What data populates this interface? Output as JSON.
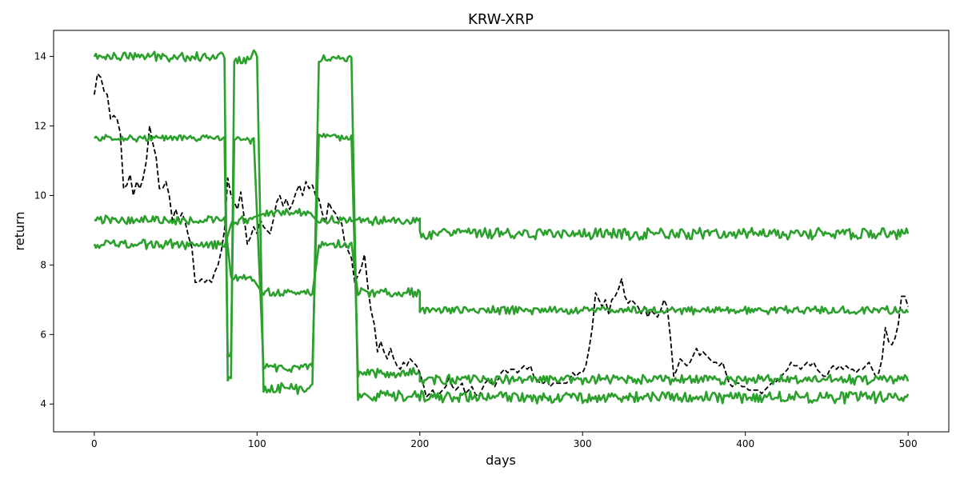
{
  "chart_data": {
    "type": "line",
    "title": "KRW-XRP",
    "xlabel": "days",
    "ylabel": "return",
    "xlim": [
      -25,
      525
    ],
    "ylim": [
      3.2,
      14.75
    ],
    "xticks": [
      0,
      100,
      200,
      300,
      400,
      500
    ],
    "yticks": [
      4,
      6,
      8,
      10,
      12,
      14
    ],
    "grid": false,
    "legend": "none",
    "colors": {
      "band": "#2ca02c",
      "actual": "#000000"
    },
    "series": [
      {
        "style": "dashed",
        "color": "#000000",
        "points": [
          [
            0,
            12.9
          ],
          [
            2,
            13.5
          ],
          [
            4,
            13.4
          ],
          [
            6,
            13.0
          ],
          [
            8,
            12.9
          ],
          [
            10,
            12.2
          ],
          [
            12,
            12.3
          ],
          [
            14,
            12.2
          ],
          [
            16,
            11.8
          ],
          [
            18,
            10.2
          ],
          [
            20,
            10.3
          ],
          [
            22,
            10.6
          ],
          [
            24,
            10.0
          ],
          [
            26,
            10.4
          ],
          [
            28,
            10.2
          ],
          [
            30,
            10.5
          ],
          [
            32,
            11.0
          ],
          [
            34,
            12.0
          ],
          [
            36,
            11.5
          ],
          [
            38,
            11.1
          ],
          [
            40,
            10.2
          ],
          [
            42,
            10.2
          ],
          [
            44,
            10.4
          ],
          [
            46,
            10.0
          ],
          [
            48,
            9.3
          ],
          [
            50,
            9.6
          ],
          [
            52,
            9.3
          ],
          [
            54,
            9.5
          ],
          [
            56,
            9.2
          ],
          [
            58,
            8.8
          ],
          [
            60,
            8.5
          ],
          [
            62,
            7.5
          ],
          [
            64,
            7.5
          ],
          [
            66,
            7.6
          ],
          [
            68,
            7.5
          ],
          [
            70,
            7.6
          ],
          [
            72,
            7.5
          ],
          [
            74,
            7.8
          ],
          [
            76,
            8.0
          ],
          [
            78,
            8.4
          ],
          [
            80,
            9.0
          ],
          [
            82,
            10.5
          ],
          [
            84,
            10.0
          ],
          [
            86,
            9.8
          ],
          [
            88,
            9.6
          ],
          [
            90,
            10.1
          ],
          [
            92,
            9.4
          ],
          [
            94,
            8.6
          ],
          [
            96,
            8.8
          ],
          [
            98,
            9.1
          ],
          [
            100,
            8.9
          ],
          [
            102,
            9.3
          ],
          [
            104,
            9.1
          ],
          [
            106,
            9.0
          ],
          [
            108,
            8.9
          ],
          [
            110,
            9.3
          ],
          [
            112,
            9.8
          ],
          [
            114,
            10.0
          ],
          [
            116,
            9.7
          ],
          [
            118,
            9.9
          ],
          [
            120,
            9.6
          ],
          [
            122,
            9.8
          ],
          [
            124,
            10.1
          ],
          [
            126,
            10.3
          ],
          [
            128,
            10.0
          ],
          [
            130,
            10.4
          ],
          [
            132,
            10.2
          ],
          [
            134,
            10.3
          ],
          [
            136,
            10.0
          ],
          [
            138,
            9.9
          ],
          [
            140,
            9.5
          ],
          [
            142,
            9.2
          ],
          [
            144,
            9.8
          ],
          [
            146,
            9.6
          ],
          [
            148,
            9.5
          ],
          [
            150,
            9.3
          ],
          [
            152,
            9.2
          ],
          [
            154,
            8.6
          ],
          [
            156,
            8.4
          ],
          [
            158,
            8.2
          ],
          [
            160,
            7.5
          ],
          [
            162,
            7.7
          ],
          [
            164,
            7.9
          ],
          [
            166,
            8.3
          ],
          [
            168,
            7.4
          ],
          [
            170,
            6.7
          ],
          [
            172,
            6.3
          ],
          [
            174,
            5.5
          ],
          [
            176,
            5.8
          ],
          [
            178,
            5.5
          ],
          [
            180,
            5.3
          ],
          [
            182,
            5.6
          ],
          [
            184,
            5.3
          ],
          [
            186,
            5.1
          ],
          [
            188,
            5.0
          ],
          [
            190,
            5.2
          ],
          [
            192,
            5.1
          ],
          [
            194,
            5.3
          ],
          [
            196,
            5.2
          ],
          [
            198,
            5.1
          ],
          [
            200,
            4.9
          ],
          [
            202,
            4.6
          ],
          [
            204,
            4.2
          ],
          [
            206,
            4.3
          ],
          [
            208,
            4.4
          ],
          [
            210,
            4.2
          ],
          [
            212,
            4.3
          ],
          [
            214,
            4.4
          ],
          [
            216,
            4.5
          ],
          [
            218,
            4.8
          ],
          [
            220,
            4.5
          ],
          [
            222,
            4.4
          ],
          [
            224,
            4.5
          ],
          [
            226,
            4.6
          ],
          [
            228,
            4.3
          ],
          [
            230,
            4.4
          ],
          [
            232,
            4.5
          ],
          [
            234,
            4.3
          ],
          [
            236,
            4.2
          ],
          [
            238,
            4.4
          ],
          [
            240,
            4.6
          ],
          [
            242,
            4.7
          ],
          [
            244,
            4.6
          ],
          [
            246,
            4.5
          ],
          [
            248,
            4.7
          ],
          [
            250,
            4.9
          ],
          [
            252,
            5.0
          ],
          [
            254,
            4.9
          ],
          [
            256,
            5.0
          ],
          [
            258,
            5.0
          ],
          [
            260,
            4.9
          ],
          [
            262,
            5.0
          ],
          [
            264,
            5.1
          ],
          [
            266,
            5.0
          ],
          [
            268,
            5.1
          ],
          [
            270,
            4.8
          ],
          [
            272,
            4.7
          ],
          [
            274,
            4.6
          ],
          [
            276,
            4.6
          ],
          [
            278,
            4.7
          ],
          [
            280,
            4.5
          ],
          [
            282,
            4.6
          ],
          [
            284,
            4.6
          ],
          [
            286,
            4.6
          ],
          [
            288,
            4.6
          ],
          [
            290,
            4.6
          ],
          [
            292,
            4.7
          ],
          [
            294,
            4.9
          ],
          [
            296,
            4.8
          ],
          [
            298,
            4.9
          ],
          [
            300,
            4.9
          ],
          [
            302,
            5.1
          ],
          [
            304,
            5.6
          ],
          [
            306,
            6.2
          ],
          [
            308,
            7.2
          ],
          [
            310,
            7.0
          ],
          [
            312,
            6.8
          ],
          [
            314,
            7.0
          ],
          [
            316,
            6.6
          ],
          [
            318,
            7.0
          ],
          [
            320,
            7.1
          ],
          [
            322,
            7.3
          ],
          [
            324,
            7.6
          ],
          [
            326,
            7.1
          ],
          [
            328,
            6.9
          ],
          [
            330,
            7.0
          ],
          [
            332,
            6.9
          ],
          [
            334,
            6.8
          ],
          [
            336,
            6.6
          ],
          [
            338,
            6.8
          ],
          [
            340,
            6.5
          ],
          [
            342,
            6.7
          ],
          [
            344,
            6.6
          ],
          [
            346,
            6.5
          ],
          [
            348,
            6.7
          ],
          [
            350,
            7.0
          ],
          [
            352,
            6.8
          ],
          [
            354,
            5.9
          ],
          [
            356,
            4.8
          ],
          [
            358,
            5.0
          ],
          [
            360,
            5.3
          ],
          [
            362,
            5.2
          ],
          [
            364,
            5.1
          ],
          [
            366,
            5.2
          ],
          [
            368,
            5.4
          ],
          [
            370,
            5.6
          ],
          [
            372,
            5.4
          ],
          [
            374,
            5.5
          ],
          [
            376,
            5.4
          ],
          [
            378,
            5.3
          ],
          [
            380,
            5.2
          ],
          [
            382,
            5.2
          ],
          [
            384,
            5.1
          ],
          [
            386,
            5.2
          ],
          [
            388,
            4.9
          ],
          [
            390,
            4.6
          ],
          [
            392,
            4.5
          ],
          [
            394,
            4.6
          ],
          [
            396,
            4.6
          ],
          [
            398,
            4.5
          ],
          [
            400,
            4.5
          ],
          [
            402,
            4.4
          ],
          [
            404,
            4.4
          ],
          [
            406,
            4.4
          ],
          [
            408,
            4.4
          ],
          [
            410,
            4.3
          ],
          [
            412,
            4.4
          ],
          [
            414,
            4.5
          ],
          [
            416,
            4.6
          ],
          [
            418,
            4.6
          ],
          [
            420,
            4.7
          ],
          [
            422,
            4.8
          ],
          [
            424,
            4.9
          ],
          [
            426,
            5.0
          ],
          [
            428,
            5.2
          ],
          [
            430,
            5.1
          ],
          [
            432,
            5.1
          ],
          [
            434,
            5.0
          ],
          [
            436,
            5.1
          ],
          [
            438,
            5.2
          ],
          [
            440,
            5.1
          ],
          [
            442,
            5.2
          ],
          [
            444,
            5.0
          ],
          [
            446,
            4.9
          ],
          [
            448,
            4.8
          ],
          [
            450,
            4.8
          ],
          [
            452,
            5.0
          ],
          [
            454,
            5.1
          ],
          [
            456,
            5.0
          ],
          [
            458,
            5.1
          ],
          [
            460,
            5.0
          ],
          [
            462,
            5.1
          ],
          [
            464,
            5.0
          ],
          [
            466,
            5.0
          ],
          [
            468,
            4.9
          ],
          [
            470,
            5.0
          ],
          [
            472,
            5.0
          ],
          [
            474,
            5.1
          ],
          [
            476,
            5.2
          ],
          [
            478,
            5.0
          ],
          [
            480,
            4.8
          ],
          [
            482,
            4.9
          ],
          [
            484,
            5.3
          ],
          [
            486,
            6.2
          ],
          [
            488,
            5.8
          ],
          [
            490,
            5.7
          ],
          [
            492,
            5.9
          ],
          [
            494,
            6.3
          ],
          [
            496,
            7.1
          ],
          [
            498,
            7.1
          ],
          [
            500,
            6.8
          ]
        ]
      },
      {
        "style": "solid",
        "color": "#2ca02c",
        "segments": [
          {
            "from": 0,
            "to": 80,
            "level": 14.0,
            "noise": 0.12
          },
          {
            "from": 82,
            "to": 84,
            "level": 4.8,
            "noise": 0.1
          },
          {
            "from": 86,
            "to": 96,
            "level": 13.9,
            "noise": 0.12
          },
          {
            "from": 98,
            "to": 100,
            "level": 14.1,
            "noise": 0.1
          },
          {
            "from": 104,
            "to": 134,
            "level": 4.45,
            "noise": 0.14
          },
          {
            "from": 138,
            "to": 158,
            "level": 13.95,
            "noise": 0.1
          },
          {
            "from": 162,
            "to": 500,
            "level": 4.2,
            "noise": 0.15
          }
        ]
      },
      {
        "style": "solid",
        "color": "#2ca02c",
        "segments": [
          {
            "from": 0,
            "to": 80,
            "level": 11.65,
            "noise": 0.08
          },
          {
            "from": 82,
            "to": 84,
            "level": 5.4,
            "noise": 0.1
          },
          {
            "from": 86,
            "to": 98,
            "level": 11.6,
            "noise": 0.1
          },
          {
            "from": 104,
            "to": 134,
            "level": 5.05,
            "noise": 0.12
          },
          {
            "from": 138,
            "to": 158,
            "level": 11.65,
            "noise": 0.1
          },
          {
            "from": 162,
            "to": 200,
            "level": 4.9,
            "noise": 0.12
          },
          {
            "from": 200,
            "to": 500,
            "level": 4.7,
            "noise": 0.12
          }
        ]
      },
      {
        "style": "solid",
        "color": "#2ca02c",
        "segments": [
          {
            "from": 0,
            "to": 80,
            "level": 9.3,
            "noise": 0.12
          },
          {
            "from": 84,
            "to": 98,
            "level": 7.6,
            "noise": 0.12
          },
          {
            "from": 104,
            "to": 134,
            "level": 7.2,
            "noise": 0.1
          },
          {
            "from": 138,
            "to": 158,
            "level": 8.6,
            "noise": 0.12
          },
          {
            "from": 162,
            "to": 200,
            "level": 7.2,
            "noise": 0.12
          },
          {
            "from": 200,
            "to": 500,
            "level": 6.7,
            "noise": 0.1
          }
        ]
      },
      {
        "style": "solid",
        "color": "#2ca02c",
        "segments": [
          {
            "from": 0,
            "to": 80,
            "level": 8.6,
            "noise": 0.12
          },
          {
            "from": 84,
            "to": 98,
            "level": 9.3,
            "noise": 0.12
          },
          {
            "from": 104,
            "to": 134,
            "level": 9.5,
            "noise": 0.1
          },
          {
            "from": 138,
            "to": 158,
            "level": 9.3,
            "noise": 0.12
          },
          {
            "from": 162,
            "to": 200,
            "level": 9.3,
            "noise": 0.12
          },
          {
            "from": 200,
            "to": 500,
            "level": 8.9,
            "noise": 0.14
          }
        ]
      }
    ]
  }
}
